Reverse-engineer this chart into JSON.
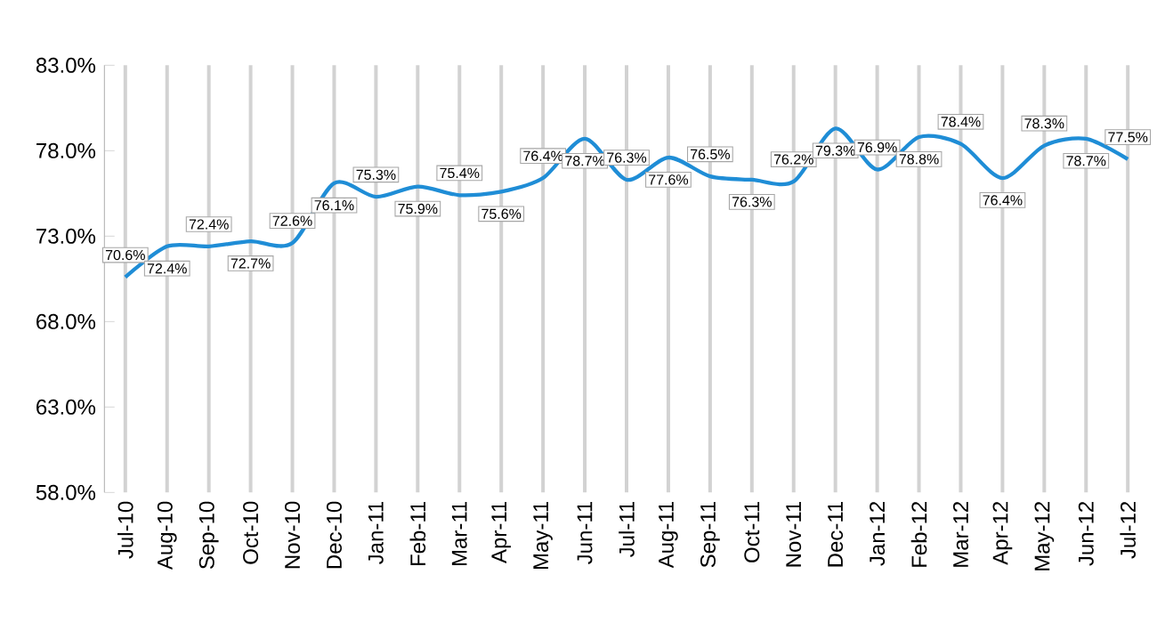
{
  "chart_data": {
    "type": "line",
    "categories": [
      "Jul-10",
      "Aug-10",
      "Sep-10",
      "Oct-10",
      "Nov-10",
      "Dec-10",
      "Jan-11",
      "Feb-11",
      "Mar-11",
      "Apr-11",
      "May-11",
      "Jun-11",
      "Jul-11",
      "Aug-11",
      "Sep-11",
      "Oct-11",
      "Nov-11",
      "Dec-11",
      "Jan-12",
      "Feb-12",
      "Mar-12",
      "Apr-12",
      "May-12",
      "Jun-12",
      "Jul-12"
    ],
    "series": [
      {
        "color": "#1f8dd6",
        "values": [
          70.6,
          72.4,
          72.4,
          72.7,
          72.6,
          76.1,
          75.3,
          75.9,
          75.4,
          75.6,
          76.4,
          78.7,
          76.3,
          77.6,
          76.5,
          76.3,
          76.2,
          79.3,
          76.9,
          78.8,
          78.4,
          76.4,
          78.3,
          78.7,
          77.5
        ],
        "value_labels": [
          "70.6%",
          "72.4%",
          "72.4%",
          "72.7%",
          "72.6%",
          "76.1%",
          "75.3%",
          "75.9%",
          "75.4%",
          "75.6%",
          "76.4%",
          "78.7%",
          "76.3%",
          "77.6%",
          "76.5%",
          "76.3%",
          "76.2%",
          "79.3%",
          "76.9%",
          "78.8%",
          "78.4%",
          "76.4%",
          "78.3%",
          "78.7%",
          "77.5%"
        ]
      }
    ],
    "ylim": [
      58,
      83
    ],
    "yticks": [
      {
        "value": 58,
        "label": "58.0%"
      },
      {
        "value": 63,
        "label": "63.0%"
      },
      {
        "value": 68,
        "label": "68.0%"
      },
      {
        "value": 73,
        "label": "73.0%"
      },
      {
        "value": 78,
        "label": "78.0%"
      },
      {
        "value": 83,
        "label": "83.0%"
      }
    ],
    "grid": "x",
    "marker": "none",
    "line_style": "solid"
  }
}
